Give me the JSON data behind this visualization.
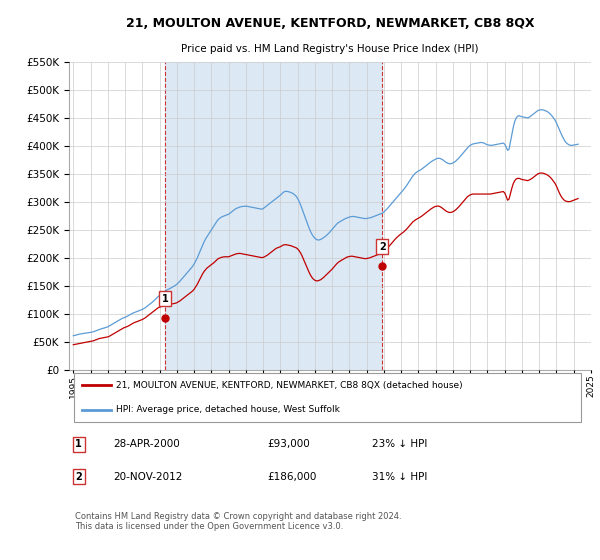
{
  "title": "21, MOULTON AVENUE, KENTFORD, NEWMARKET, CB8 8QX",
  "subtitle": "Price paid vs. HM Land Registry's House Price Index (HPI)",
  "ylim": [
    0,
    550000
  ],
  "yticks": [
    0,
    50000,
    100000,
    150000,
    200000,
    250000,
    300000,
    350000,
    400000,
    450000,
    500000,
    550000
  ],
  "hpi_color": "#5b9bd5",
  "hpi_fill_color": "#dce9f5",
  "price_color": "#c00000",
  "marker1_year": 2000.33,
  "marker1_price": 93000,
  "marker1_label": "1",
  "marker1_date": "28-APR-2000",
  "marker1_amount": "£93,000",
  "marker1_pct": "23% ↓ HPI",
  "marker2_year": 2012.9,
  "marker2_price": 186000,
  "marker2_label": "2",
  "marker2_date": "20-NOV-2012",
  "marker2_amount": "£186,000",
  "marker2_pct": "31% ↓ HPI",
  "legend_line1": "21, MOULTON AVENUE, KENTFORD, NEWMARKET, CB8 8QX (detached house)",
  "legend_line2": "HPI: Average price, detached house, West Suffolk",
  "footer": "Contains HM Land Registry data © Crown copyright and database right 2024.\nThis data is licensed under the Open Government Licence v3.0.",
  "hpi_years": [
    1995.0,
    1995.083,
    1995.167,
    1995.25,
    1995.333,
    1995.417,
    1995.5,
    1995.583,
    1995.667,
    1995.75,
    1995.833,
    1995.917,
    1996.0,
    1996.083,
    1996.167,
    1996.25,
    1996.333,
    1996.417,
    1996.5,
    1996.583,
    1996.667,
    1996.75,
    1996.833,
    1996.917,
    1997.0,
    1997.083,
    1997.167,
    1997.25,
    1997.333,
    1997.417,
    1997.5,
    1997.583,
    1997.667,
    1997.75,
    1997.833,
    1997.917,
    1998.0,
    1998.083,
    1998.167,
    1998.25,
    1998.333,
    1998.417,
    1998.5,
    1998.583,
    1998.667,
    1998.75,
    1998.833,
    1998.917,
    1999.0,
    1999.083,
    1999.167,
    1999.25,
    1999.333,
    1999.417,
    1999.5,
    1999.583,
    1999.667,
    1999.75,
    1999.833,
    1999.917,
    2000.0,
    2000.083,
    2000.167,
    2000.25,
    2000.333,
    2000.417,
    2000.5,
    2000.583,
    2000.667,
    2000.75,
    2000.833,
    2000.917,
    2001.0,
    2001.083,
    2001.167,
    2001.25,
    2001.333,
    2001.417,
    2001.5,
    2001.583,
    2001.667,
    2001.75,
    2001.833,
    2001.917,
    2002.0,
    2002.083,
    2002.167,
    2002.25,
    2002.333,
    2002.417,
    2002.5,
    2002.583,
    2002.667,
    2002.75,
    2002.833,
    2002.917,
    2003.0,
    2003.083,
    2003.167,
    2003.25,
    2003.333,
    2003.417,
    2003.5,
    2003.583,
    2003.667,
    2003.75,
    2003.833,
    2003.917,
    2004.0,
    2004.083,
    2004.167,
    2004.25,
    2004.333,
    2004.417,
    2004.5,
    2004.583,
    2004.667,
    2004.75,
    2004.833,
    2004.917,
    2005.0,
    2005.083,
    2005.167,
    2005.25,
    2005.333,
    2005.417,
    2005.5,
    2005.583,
    2005.667,
    2005.75,
    2005.833,
    2005.917,
    2006.0,
    2006.083,
    2006.167,
    2006.25,
    2006.333,
    2006.417,
    2006.5,
    2006.583,
    2006.667,
    2006.75,
    2006.833,
    2006.917,
    2007.0,
    2007.083,
    2007.167,
    2007.25,
    2007.333,
    2007.417,
    2007.5,
    2007.583,
    2007.667,
    2007.75,
    2007.833,
    2007.917,
    2008.0,
    2008.083,
    2008.167,
    2008.25,
    2008.333,
    2008.417,
    2008.5,
    2008.583,
    2008.667,
    2008.75,
    2008.833,
    2008.917,
    2009.0,
    2009.083,
    2009.167,
    2009.25,
    2009.333,
    2009.417,
    2009.5,
    2009.583,
    2009.667,
    2009.75,
    2009.833,
    2009.917,
    2010.0,
    2010.083,
    2010.167,
    2010.25,
    2010.333,
    2010.417,
    2010.5,
    2010.583,
    2010.667,
    2010.75,
    2010.833,
    2010.917,
    2011.0,
    2011.083,
    2011.167,
    2011.25,
    2011.333,
    2011.417,
    2011.5,
    2011.583,
    2011.667,
    2011.75,
    2011.833,
    2011.917,
    2012.0,
    2012.083,
    2012.167,
    2012.25,
    2012.333,
    2012.417,
    2012.5,
    2012.583,
    2012.667,
    2012.75,
    2012.833,
    2012.917,
    2013.0,
    2013.083,
    2013.167,
    2013.25,
    2013.333,
    2013.417,
    2013.5,
    2013.583,
    2013.667,
    2013.75,
    2013.833,
    2013.917,
    2014.0,
    2014.083,
    2014.167,
    2014.25,
    2014.333,
    2014.417,
    2014.5,
    2014.583,
    2014.667,
    2014.75,
    2014.833,
    2014.917,
    2015.0,
    2015.083,
    2015.167,
    2015.25,
    2015.333,
    2015.417,
    2015.5,
    2015.583,
    2015.667,
    2015.75,
    2015.833,
    2015.917,
    2016.0,
    2016.083,
    2016.167,
    2016.25,
    2016.333,
    2016.417,
    2016.5,
    2016.583,
    2016.667,
    2016.75,
    2016.833,
    2016.917,
    2017.0,
    2017.083,
    2017.167,
    2017.25,
    2017.333,
    2017.417,
    2017.5,
    2017.583,
    2017.667,
    2017.75,
    2017.833,
    2017.917,
    2018.0,
    2018.083,
    2018.167,
    2018.25,
    2018.333,
    2018.417,
    2018.5,
    2018.583,
    2018.667,
    2018.75,
    2018.833,
    2018.917,
    2019.0,
    2019.083,
    2019.167,
    2019.25,
    2019.333,
    2019.417,
    2019.5,
    2019.583,
    2019.667,
    2019.75,
    2019.833,
    2019.917,
    2020.0,
    2020.083,
    2020.167,
    2020.25,
    2020.333,
    2020.417,
    2020.5,
    2020.583,
    2020.667,
    2020.75,
    2020.833,
    2020.917,
    2021.0,
    2021.083,
    2021.167,
    2021.25,
    2021.333,
    2021.417,
    2021.5,
    2021.583,
    2021.667,
    2021.75,
    2021.833,
    2021.917,
    2022.0,
    2022.083,
    2022.167,
    2022.25,
    2022.333,
    2022.417,
    2022.5,
    2022.583,
    2022.667,
    2022.75,
    2022.833,
    2022.917,
    2023.0,
    2023.083,
    2023.167,
    2023.25,
    2023.333,
    2023.417,
    2023.5,
    2023.583,
    2023.667,
    2023.75,
    2023.833,
    2023.917,
    2024.0,
    2024.083,
    2024.167,
    2024.25
  ],
  "hpi_values": [
    62000,
    62500,
    63200,
    64100,
    64800,
    65200,
    65500,
    66000,
    66500,
    67000,
    67300,
    67600,
    68000,
    68500,
    69200,
    70100,
    71000,
    72000,
    73000,
    74000,
    74800,
    75500,
    76200,
    77000,
    78000,
    79500,
    81000,
    82500,
    84000,
    85500,
    87000,
    88500,
    90000,
    91500,
    93000,
    94000,
    95000,
    96000,
    97500,
    99000,
    100500,
    102000,
    103000,
    104000,
    105000,
    106000,
    107000,
    108000,
    109000,
    110500,
    112000,
    114000,
    116000,
    118000,
    120000,
    122000,
    124500,
    127000,
    129500,
    132000,
    134000,
    136000,
    138000,
    140000,
    142000,
    143500,
    145000,
    146000,
    147500,
    149000,
    150500,
    152000,
    154000,
    156500,
    159000,
    162000,
    165000,
    168000,
    171000,
    174000,
    177000,
    180000,
    183000,
    186000,
    190000,
    195000,
    200000,
    206000,
    212000,
    218000,
    224000,
    230000,
    235000,
    239000,
    243000,
    247000,
    251000,
    255000,
    259000,
    263000,
    267000,
    270000,
    272000,
    274000,
    275000,
    276000,
    277000,
    278000,
    279000,
    281000,
    283000,
    285000,
    287000,
    289000,
    290000,
    291000,
    292000,
    292500,
    293000,
    293000,
    293500,
    293000,
    292500,
    292000,
    291500,
    291000,
    290500,
    290000,
    289500,
    289000,
    288500,
    288000,
    289000,
    291000,
    293000,
    295000,
    297000,
    299000,
    301000,
    303000,
    305000,
    307000,
    309000,
    311000,
    313000,
    315500,
    318000,
    319500,
    320000,
    319500,
    319000,
    318000,
    317000,
    315500,
    313500,
    311000,
    307000,
    302000,
    296000,
    289000,
    282000,
    275000,
    268000,
    261000,
    254000,
    248000,
    243000,
    239000,
    236000,
    234000,
    233000,
    233000,
    234000,
    235500,
    237000,
    239000,
    241000,
    243500,
    246000,
    249000,
    252000,
    255000,
    258000,
    261000,
    263500,
    265000,
    266500,
    268000,
    269500,
    271000,
    272000,
    273000,
    274000,
    274500,
    275000,
    275000,
    274500,
    274000,
    273500,
    273000,
    272500,
    272000,
    271500,
    271000,
    271500,
    272000,
    272500,
    273000,
    274000,
    275000,
    276000,
    277000,
    278000,
    279000,
    280000,
    281000,
    283000,
    285500,
    288000,
    291000,
    294000,
    297000,
    300000,
    303000,
    306000,
    309000,
    312000,
    315000,
    318000,
    321000,
    324000,
    327500,
    331000,
    335000,
    339000,
    343000,
    347000,
    350000,
    352500,
    354500,
    356000,
    357500,
    359000,
    361000,
    363000,
    365000,
    367000,
    369000,
    371000,
    373000,
    374500,
    376000,
    377500,
    378500,
    379000,
    378500,
    377500,
    376000,
    374000,
    372000,
    370500,
    369500,
    369000,
    369500,
    370500,
    372000,
    374000,
    376500,
    379000,
    382000,
    385000,
    388000,
    391000,
    394000,
    397000,
    400000,
    402000,
    403500,
    404500,
    405000,
    405500,
    406000,
    406500,
    407000,
    407000,
    406500,
    405500,
    404000,
    403000,
    402500,
    402000,
    402000,
    402500,
    403000,
    403500,
    404000,
    404500,
    405000,
    405500,
    406000,
    404000,
    399000,
    393000,
    395000,
    408000,
    422000,
    435000,
    445000,
    451000,
    454000,
    455000,
    454000,
    453000,
    452500,
    452000,
    451500,
    451000,
    452000,
    454000,
    456000,
    458000,
    460000,
    462000,
    464000,
    465000,
    465500,
    465500,
    465000,
    464000,
    463000,
    461500,
    459500,
    457000,
    454000,
    450500,
    447000,
    442000,
    436000,
    430000,
    424000,
    418500,
    413500,
    409000,
    406000,
    404000,
    402500,
    402000,
    402000,
    402500,
    403000,
    403500,
    404000
  ],
  "price_years": [
    1995.0,
    1995.083,
    1995.167,
    1995.25,
    1995.333,
    1995.417,
    1995.5,
    1995.583,
    1995.667,
    1995.75,
    1995.833,
    1995.917,
    1996.0,
    1996.083,
    1996.167,
    1996.25,
    1996.333,
    1996.417,
    1996.5,
    1996.583,
    1996.667,
    1996.75,
    1996.833,
    1996.917,
    1997.0,
    1997.083,
    1997.167,
    1997.25,
    1997.333,
    1997.417,
    1997.5,
    1997.583,
    1997.667,
    1997.75,
    1997.833,
    1997.917,
    1998.0,
    1998.083,
    1998.167,
    1998.25,
    1998.333,
    1998.417,
    1998.5,
    1998.583,
    1998.667,
    1998.75,
    1998.833,
    1998.917,
    1999.0,
    1999.083,
    1999.167,
    1999.25,
    1999.333,
    1999.417,
    1999.5,
    1999.583,
    1999.667,
    1999.75,
    1999.833,
    1999.917,
    2000.0,
    2000.083,
    2000.167,
    2000.25,
    2000.333,
    2000.417,
    2000.5,
    2000.583,
    2000.667,
    2000.75,
    2000.833,
    2000.917,
    2001.0,
    2001.083,
    2001.167,
    2001.25,
    2001.333,
    2001.417,
    2001.5,
    2001.583,
    2001.667,
    2001.75,
    2001.833,
    2001.917,
    2002.0,
    2002.083,
    2002.167,
    2002.25,
    2002.333,
    2002.417,
    2002.5,
    2002.583,
    2002.667,
    2002.75,
    2002.833,
    2002.917,
    2003.0,
    2003.083,
    2003.167,
    2003.25,
    2003.333,
    2003.417,
    2003.5,
    2003.583,
    2003.667,
    2003.75,
    2003.833,
    2003.917,
    2004.0,
    2004.083,
    2004.167,
    2004.25,
    2004.333,
    2004.417,
    2004.5,
    2004.583,
    2004.667,
    2004.75,
    2004.833,
    2004.917,
    2005.0,
    2005.083,
    2005.167,
    2005.25,
    2005.333,
    2005.417,
    2005.5,
    2005.583,
    2005.667,
    2005.75,
    2005.833,
    2005.917,
    2006.0,
    2006.083,
    2006.167,
    2006.25,
    2006.333,
    2006.417,
    2006.5,
    2006.583,
    2006.667,
    2006.75,
    2006.833,
    2006.917,
    2007.0,
    2007.083,
    2007.167,
    2007.25,
    2007.333,
    2007.417,
    2007.5,
    2007.583,
    2007.667,
    2007.75,
    2007.833,
    2007.917,
    2008.0,
    2008.083,
    2008.167,
    2008.25,
    2008.333,
    2008.417,
    2008.5,
    2008.583,
    2008.667,
    2008.75,
    2008.833,
    2008.917,
    2009.0,
    2009.083,
    2009.167,
    2009.25,
    2009.333,
    2009.417,
    2009.5,
    2009.583,
    2009.667,
    2009.75,
    2009.833,
    2009.917,
    2010.0,
    2010.083,
    2010.167,
    2010.25,
    2010.333,
    2010.417,
    2010.5,
    2010.583,
    2010.667,
    2010.75,
    2010.833,
    2010.917,
    2011.0,
    2011.083,
    2011.167,
    2011.25,
    2011.333,
    2011.417,
    2011.5,
    2011.583,
    2011.667,
    2011.75,
    2011.833,
    2011.917,
    2012.0,
    2012.083,
    2012.167,
    2012.25,
    2012.333,
    2012.417,
    2012.5,
    2012.583,
    2012.667,
    2012.75,
    2012.833,
    2012.917,
    2013.0,
    2013.083,
    2013.167,
    2013.25,
    2013.333,
    2013.417,
    2013.5,
    2013.583,
    2013.667,
    2013.75,
    2013.833,
    2013.917,
    2014.0,
    2014.083,
    2014.167,
    2014.25,
    2014.333,
    2014.417,
    2014.5,
    2014.583,
    2014.667,
    2014.75,
    2014.833,
    2014.917,
    2015.0,
    2015.083,
    2015.167,
    2015.25,
    2015.333,
    2015.417,
    2015.5,
    2015.583,
    2015.667,
    2015.75,
    2015.833,
    2015.917,
    2016.0,
    2016.083,
    2016.167,
    2016.25,
    2016.333,
    2016.417,
    2016.5,
    2016.583,
    2016.667,
    2016.75,
    2016.833,
    2016.917,
    2017.0,
    2017.083,
    2017.167,
    2017.25,
    2017.333,
    2017.417,
    2017.5,
    2017.583,
    2017.667,
    2017.75,
    2017.833,
    2017.917,
    2018.0,
    2018.083,
    2018.167,
    2018.25,
    2018.333,
    2018.417,
    2018.5,
    2018.583,
    2018.667,
    2018.75,
    2018.833,
    2018.917,
    2019.0,
    2019.083,
    2019.167,
    2019.25,
    2019.333,
    2019.417,
    2019.5,
    2019.583,
    2019.667,
    2019.75,
    2019.833,
    2019.917,
    2020.0,
    2020.083,
    2020.167,
    2020.25,
    2020.333,
    2020.417,
    2020.5,
    2020.583,
    2020.667,
    2020.75,
    2020.833,
    2020.917,
    2021.0,
    2021.083,
    2021.167,
    2021.25,
    2021.333,
    2021.417,
    2021.5,
    2021.583,
    2021.667,
    2021.75,
    2021.833,
    2021.917,
    2022.0,
    2022.083,
    2022.167,
    2022.25,
    2022.333,
    2022.417,
    2022.5,
    2022.583,
    2022.667,
    2022.75,
    2022.833,
    2022.917,
    2023.0,
    2023.083,
    2023.167,
    2023.25,
    2023.333,
    2023.417,
    2023.5,
    2023.583,
    2023.667,
    2023.75,
    2023.833,
    2023.917,
    2024.0,
    2024.083,
    2024.167,
    2024.25
  ],
  "price_values": [
    46000,
    46500,
    47000,
    47500,
    48000,
    48500,
    49000,
    49500,
    50000,
    50500,
    51000,
    51500,
    52000,
    52500,
    53000,
    54000,
    55000,
    56000,
    57000,
    57500,
    58000,
    58500,
    59000,
    59500,
    60000,
    61000,
    62500,
    64000,
    65500,
    67000,
    68500,
    70000,
    71500,
    73000,
    74500,
    76000,
    77000,
    78000,
    79000,
    80500,
    82000,
    83500,
    85000,
    86000,
    87000,
    88000,
    89000,
    90000,
    91000,
    92500,
    94000,
    96000,
    98000,
    100000,
    102000,
    104000,
    106000,
    108000,
    110000,
    112000,
    113000,
    114000,
    115000,
    116000,
    117000,
    117500,
    118000,
    118000,
    118500,
    119000,
    119500,
    120000,
    121000,
    122500,
    124000,
    126000,
    128000,
    130000,
    132000,
    134000,
    136000,
    138000,
    140000,
    142000,
    145000,
    149000,
    153000,
    158000,
    163000,
    168000,
    173000,
    177000,
    180000,
    183000,
    185000,
    187000,
    189000,
    191000,
    193000,
    195500,
    198000,
    200000,
    201000,
    202000,
    202500,
    203000,
    203000,
    203000,
    203000,
    204000,
    205000,
    206000,
    207000,
    208000,
    208500,
    209000,
    209000,
    208500,
    208000,
    207500,
    207000,
    206500,
    206000,
    205500,
    205000,
    204500,
    204000,
    203500,
    203000,
    202500,
    202000,
    201500,
    202000,
    203000,
    204500,
    206000,
    208000,
    210000,
    212000,
    214000,
    216000,
    218000,
    219000,
    220000,
    221000,
    222500,
    224000,
    224500,
    224500,
    224000,
    223500,
    223000,
    222000,
    221000,
    220000,
    219000,
    217000,
    214000,
    210000,
    205000,
    199000,
    193000,
    187000,
    181000,
    175000,
    170000,
    166000,
    163000,
    161000,
    160000,
    160000,
    161000,
    162000,
    164000,
    166000,
    168500,
    171000,
    173500,
    176000,
    178500,
    181000,
    184000,
    187000,
    190000,
    192500,
    194500,
    196000,
    197500,
    199000,
    200500,
    202000,
    203000,
    203500,
    204000,
    204000,
    203500,
    203000,
    202500,
    202000,
    201500,
    201000,
    200500,
    200000,
    199500,
    200000,
    200500,
    201000,
    202000,
    203000,
    204000,
    205000,
    206000,
    207000,
    208000,
    209000,
    210000,
    212000,
    214500,
    217000,
    220000,
    223000,
    226000,
    229000,
    232000,
    235000,
    237500,
    240000,
    242000,
    244000,
    246000,
    248000,
    250500,
    253000,
    256000,
    259000,
    262000,
    265000,
    267000,
    269000,
    270500,
    272000,
    273500,
    275000,
    277000,
    279000,
    281000,
    283000,
    285000,
    287000,
    289000,
    290500,
    292000,
    293000,
    293500,
    293500,
    292500,
    291000,
    289000,
    287000,
    285000,
    283500,
    282500,
    282000,
    282500,
    283500,
    285000,
    287000,
    289500,
    292000,
    295000,
    298000,
    301000,
    304000,
    307000,
    310000,
    312000,
    313500,
    314500,
    315000,
    315000,
    315000,
    315000,
    315000,
    315000,
    315000,
    315000,
    315000,
    315000,
    315000,
    315000,
    315000,
    315500,
    316000,
    316500,
    317000,
    317500,
    318000,
    318500,
    319000,
    319500,
    317000,
    311000,
    304000,
    306000,
    316000,
    326000,
    334000,
    339000,
    342000,
    343000,
    343000,
    342000,
    341000,
    340500,
    340000,
    339500,
    339000,
    340000,
    341500,
    343000,
    345000,
    347000,
    349000,
    351000,
    352000,
    352500,
    352500,
    352000,
    351000,
    350000,
    348500,
    346500,
    344000,
    341000,
    337500,
    334000,
    329000,
    323000,
    317000,
    312000,
    308000,
    305000,
    303000,
    302000,
    301500,
    301500,
    302000,
    303000,
    304000,
    305000,
    306000,
    307000
  ]
}
